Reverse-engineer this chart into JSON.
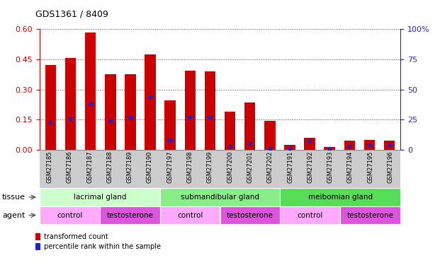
{
  "title": "GDS1361 / 8409",
  "samples": [
    "GSM27185",
    "GSM27186",
    "GSM27187",
    "GSM27188",
    "GSM27189",
    "GSM27190",
    "GSM27197",
    "GSM27198",
    "GSM27199",
    "GSM27200",
    "GSM27201",
    "GSM27202",
    "GSM27191",
    "GSM27192",
    "GSM27193",
    "GSM27194",
    "GSM27195",
    "GSM27196"
  ],
  "transformed_count": [
    0.42,
    0.455,
    0.585,
    0.375,
    0.375,
    0.475,
    0.245,
    0.395,
    0.39,
    0.19,
    0.235,
    0.145,
    0.025,
    0.06,
    0.015,
    0.045,
    0.05,
    0.045
  ],
  "percentile_rank": [
    23,
    26,
    38,
    24,
    27,
    44,
    8,
    27,
    27,
    3,
    5,
    1,
    1,
    7,
    1,
    3,
    4,
    4
  ],
  "bar_color": "#cc0000",
  "dot_color": "#2222cc",
  "ylim_left": [
    0,
    0.6
  ],
  "ylim_right": [
    0,
    100
  ],
  "yticks_left": [
    0,
    0.15,
    0.3,
    0.45,
    0.6
  ],
  "yticks_right": [
    0,
    25,
    50,
    75,
    100
  ],
  "left_tick_color": "#cc0000",
  "right_tick_color": "#2222cc",
  "tissue_groups": [
    {
      "label": "lacrimal gland",
      "start": 0,
      "end": 6,
      "color": "#ccffcc"
    },
    {
      "label": "submandibular gland",
      "start": 6,
      "end": 12,
      "color": "#88ee88"
    },
    {
      "label": "meibomian gland",
      "start": 12,
      "end": 18,
      "color": "#55dd55"
    }
  ],
  "agent_groups": [
    {
      "label": "control",
      "start": 0,
      "end": 3,
      "color": "#ffaaff"
    },
    {
      "label": "testosterone",
      "start": 3,
      "end": 6,
      "color": "#dd55dd"
    },
    {
      "label": "control",
      "start": 6,
      "end": 9,
      "color": "#ffaaff"
    },
    {
      "label": "testosterone",
      "start": 9,
      "end": 12,
      "color": "#dd55dd"
    },
    {
      "label": "control",
      "start": 12,
      "end": 15,
      "color": "#ffaaff"
    },
    {
      "label": "testosterone",
      "start": 15,
      "end": 18,
      "color": "#dd55dd"
    }
  ],
  "legend_items": [
    {
      "label": "transformed count",
      "color": "#cc0000"
    },
    {
      "label": "percentile rank within the sample",
      "color": "#2222cc"
    }
  ],
  "xtick_bg": "#cccccc",
  "plot_bg": "#ffffff",
  "fig_bg": "#ffffff",
  "tissue_label": "tissue",
  "agent_label": "agent"
}
